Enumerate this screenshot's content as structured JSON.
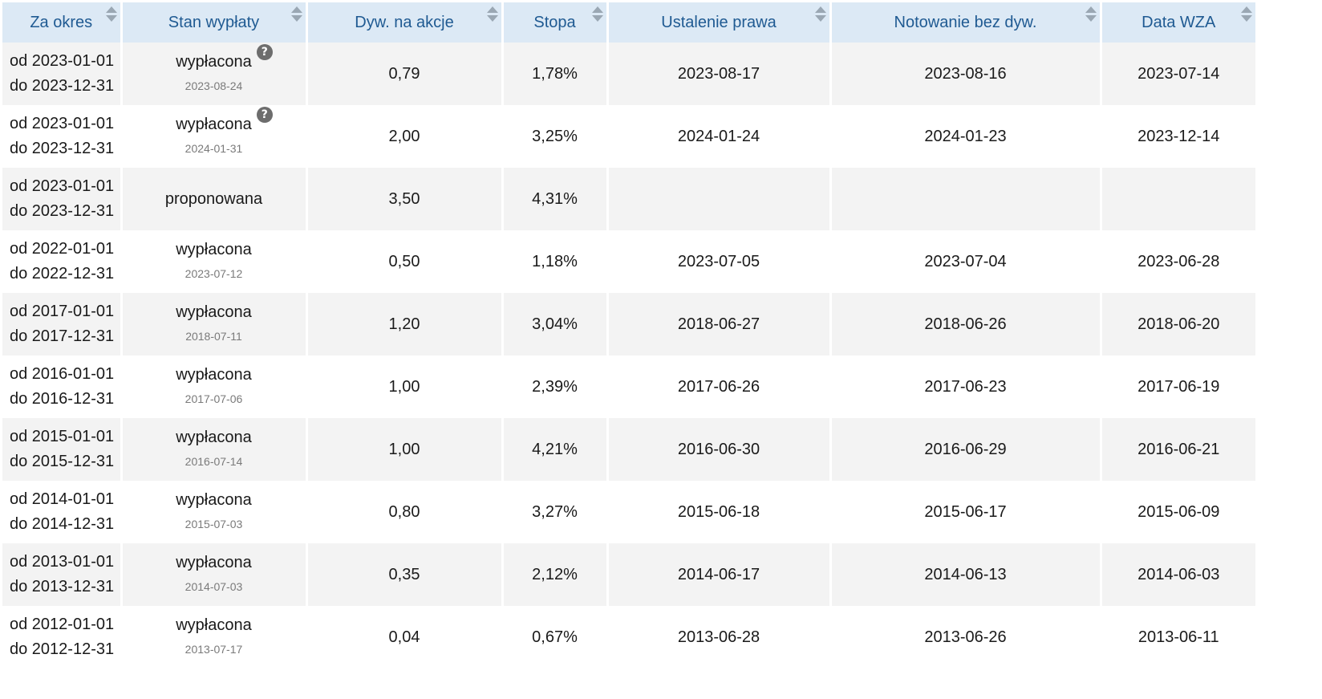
{
  "table": {
    "headers": [
      "Za okres",
      "Stan wypłaty",
      "Dyw. na akcje",
      "Stopa",
      "Ustalenie prawa",
      "Notowanie bez dyw.",
      "Data WZA"
    ],
    "help_glyph": "?",
    "rows": [
      {
        "period_from": "od 2023-01-01",
        "period_to": "do 2023-12-31",
        "status": "wypłacona",
        "status_date": "2023-08-24",
        "dividend": "0,79",
        "yield": "1,78%",
        "record_date": "2023-08-17",
        "ex_date": "2023-08-16",
        "agm_date": "2023-07-14"
      },
      {
        "period_from": "od 2023-01-01",
        "period_to": "do 2023-12-31",
        "status": "wypłacona",
        "status_date": "2024-01-31",
        "dividend": "2,00",
        "yield": "3,25%",
        "record_date": "2024-01-24",
        "ex_date": "2024-01-23",
        "agm_date": "2023-12-14"
      },
      {
        "period_from": "od 2023-01-01",
        "period_to": "do 2023-12-31",
        "status": "proponowana",
        "status_date": "",
        "dividend": "3,50",
        "yield": "4,31%",
        "record_date": "",
        "ex_date": "",
        "agm_date": ""
      },
      {
        "period_from": "od 2022-01-01",
        "period_to": "do 2022-12-31",
        "status": "wypłacona",
        "status_date": "2023-07-12",
        "dividend": "0,50",
        "yield": "1,18%",
        "record_date": "2023-07-05",
        "ex_date": "2023-07-04",
        "agm_date": "2023-06-28"
      },
      {
        "period_from": "od 2017-01-01",
        "period_to": "do 2017-12-31",
        "status": "wypłacona",
        "status_date": "2018-07-11",
        "dividend": "1,20",
        "yield": "3,04%",
        "record_date": "2018-06-27",
        "ex_date": "2018-06-26",
        "agm_date": "2018-06-20"
      },
      {
        "period_from": "od 2016-01-01",
        "period_to": "do 2016-12-31",
        "status": "wypłacona",
        "status_date": "2017-07-06",
        "dividend": "1,00",
        "yield": "2,39%",
        "record_date": "2017-06-26",
        "ex_date": "2017-06-23",
        "agm_date": "2017-06-19"
      },
      {
        "period_from": "od 2015-01-01",
        "period_to": "do 2015-12-31",
        "status": "wypłacona",
        "status_date": "2016-07-14",
        "dividend": "1,00",
        "yield": "4,21%",
        "record_date": "2016-06-30",
        "ex_date": "2016-06-29",
        "agm_date": "2016-06-21"
      },
      {
        "period_from": "od 2014-01-01",
        "period_to": "do 2014-12-31",
        "status": "wypłacona",
        "status_date": "2015-07-03",
        "dividend": "0,80",
        "yield": "3,27%",
        "record_date": "2015-06-18",
        "ex_date": "2015-06-17",
        "agm_date": "2015-06-09"
      },
      {
        "period_from": "od 2013-01-01",
        "period_to": "do 2013-12-31",
        "status": "wypłacona",
        "status_date": "2014-07-03",
        "dividend": "0,35",
        "yield": "2,12%",
        "record_date": "2014-06-17",
        "ex_date": "2014-06-13",
        "agm_date": "2014-06-03"
      },
      {
        "period_from": "od 2012-01-01",
        "period_to": "do 2012-12-31",
        "status": "wypłacona",
        "status_date": "2013-07-17",
        "dividend": "0,04",
        "yield": "0,67%",
        "record_date": "2013-06-28",
        "ex_date": "2013-06-26",
        "agm_date": "2013-06-11"
      }
    ]
  }
}
